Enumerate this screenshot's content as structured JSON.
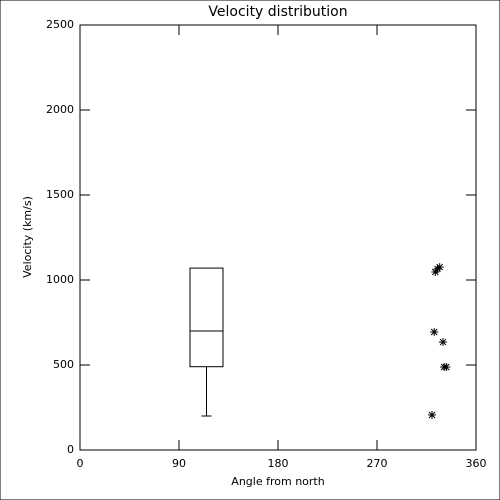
{
  "chart_data": {
    "type": "box",
    "title": "Velocity distribution",
    "xlabel": "Angle from north",
    "ylabel": "Velocity (km/s)",
    "xlim": [
      0,
      360
    ],
    "xticks": [
      0,
      90,
      180,
      270,
      360
    ],
    "ylim": [
      0,
      2500
    ],
    "yticks": [
      0,
      500,
      1000,
      1500,
      2000,
      2500
    ],
    "color": "#000000",
    "box": {
      "x": [
        100,
        130
      ],
      "min": 200,
      "q1": 490,
      "median": 700,
      "q3": 1070,
      "max": 1070
    },
    "points": {
      "x": [
        320,
        322,
        330,
        323,
        327,
        325,
        333,
        331
      ],
      "y": [
        206,
        694,
        635,
        1047,
        1076,
        1065,
        488,
        488
      ]
    }
  }
}
